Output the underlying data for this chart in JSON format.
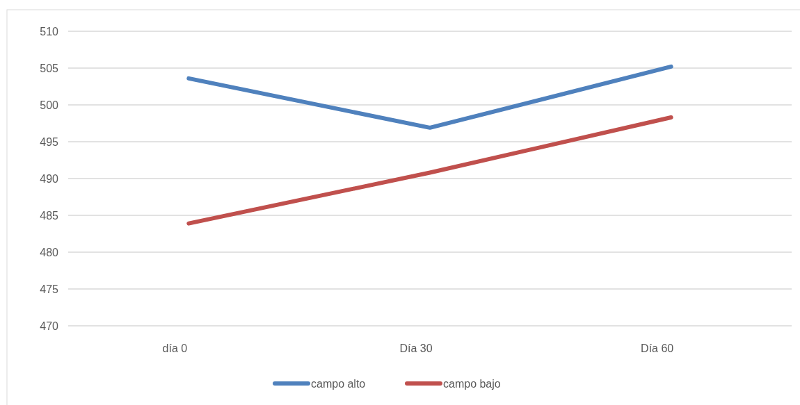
{
  "chart_data": {
    "type": "line",
    "categories": [
      "día 0",
      "Día 30",
      "Día 60"
    ],
    "series": [
      {
        "name": "campo alto",
        "color": "#4f81bd",
        "values": [
          503.6,
          496.9,
          505.2
        ]
      },
      {
        "name": "campo bajo",
        "color": "#c0504d",
        "values": [
          483.9,
          490.8,
          498.3
        ]
      }
    ],
    "ylim": [
      470,
      510
    ],
    "yticks": [
      470,
      475,
      480,
      485,
      490,
      495,
      500,
      505,
      510
    ],
    "grid": "y",
    "legend": "bottom",
    "marker": "none",
    "line_style": "solid"
  }
}
